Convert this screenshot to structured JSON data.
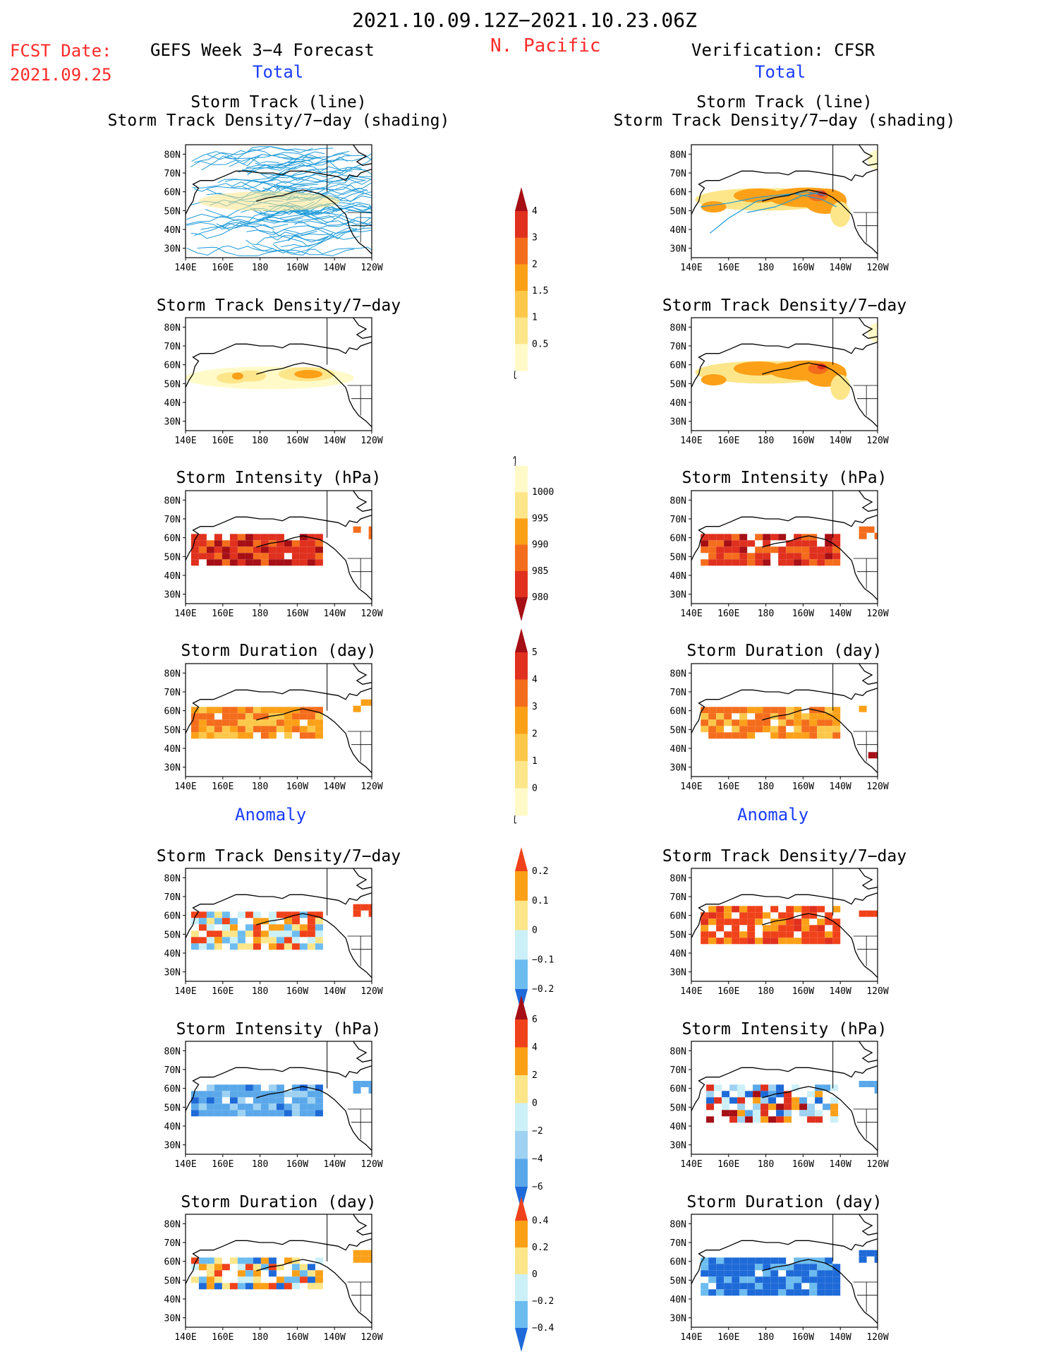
{
  "header": {
    "period": "2021.10.09.12Z−2021.10.23.06Z",
    "region": "N. Pacific",
    "fcst_date_label": "FCST Date:",
    "fcst_date": "2021.09.25",
    "left_title": "GEFS Week 3−4 Forecast",
    "right_title": "Verification: CFSR",
    "left_total": "Total",
    "right_total": "Total",
    "left_anomaly": "Anomaly",
    "right_anomaly": "Anomaly"
  },
  "colors": {
    "red_text": "#ff2a2a",
    "blue_text": "#1a3cff",
    "track_line": "#1e9bd8"
  },
  "axis_ticks": {
    "lat": [
      "80N",
      "70N",
      "60N",
      "50N",
      "40N",
      "30N"
    ],
    "lon": [
      "140E",
      "160E",
      "180",
      "160W",
      "140W",
      "120W"
    ]
  },
  "panels": {
    "left": [
      {
        "title": "Storm Track (line)",
        "title2": "Storm Track Density/7−day (shading)"
      },
      {
        "title": "Storm Track Density/7−day"
      },
      {
        "title": "Storm Intensity (hPa)"
      },
      {
        "title": "Storm Duration (day)"
      },
      {
        "title": "Storm Track Density/7−day"
      },
      {
        "title": "Storm Intensity (hPa)"
      },
      {
        "title": "Storm Duration (day)"
      }
    ],
    "right": [
      {
        "title": "Storm Track (line)",
        "title2": "Storm Track Density/7−day (shading)"
      },
      {
        "title": "Storm Track Density/7−day"
      },
      {
        "title": "Storm Intensity (hPa)"
      },
      {
        "title": "Storm Duration (day)"
      },
      {
        "title": "Storm Track Density/7−day"
      },
      {
        "title": "Storm Intensity (hPa)"
      },
      {
        "title": "Storm Duration (day)"
      }
    ]
  },
  "colorbars": [
    {
      "name": "density",
      "labels": [
        "4",
        "3",
        "2",
        "1.5",
        "1",
        "0.5"
      ],
      "colors": [
        "#a50f15",
        "#e0301e",
        "#f46d1c",
        "#fca018",
        "#fdc84a",
        "#fde68a",
        "#fffac8"
      ]
    },
    {
      "name": "intensity",
      "labels": [
        "1000",
        "995",
        "990",
        "985",
        "980"
      ],
      "colors": [
        "#fffac8",
        "#fde68a",
        "#fca018",
        "#f46d1c",
        "#e0301e",
        "#a50f15"
      ]
    },
    {
      "name": "duration",
      "labels": [
        "5",
        "4",
        "3",
        "2",
        "1",
        "0"
      ],
      "colors": [
        "#a50f15",
        "#e0301e",
        "#f46d1c",
        "#fca018",
        "#fdc84a",
        "#fde68a",
        "#fffac8"
      ]
    },
    {
      "name": "density-anomaly",
      "labels": [
        "0.2",
        "0.1",
        "0",
        "−0.1",
        "−0.2"
      ],
      "colors": [
        "#f0421a",
        "#fca018",
        "#fde68a",
        "#ccf0f8",
        "#6cbcf0",
        "#1e6ad8"
      ]
    },
    {
      "name": "intensity-anomaly",
      "labels": [
        "6",
        "4",
        "2",
        "0",
        "−2",
        "−4",
        "−6"
      ],
      "colors": [
        "#a50f15",
        "#f0421a",
        "#fca018",
        "#fde68a",
        "#ccf0f8",
        "#9fd2f2",
        "#5aa8ea",
        "#1e6ad8"
      ]
    },
    {
      "name": "duration-anomaly",
      "labels": [
        "0.4",
        "0.2",
        "0",
        "−0.2",
        "−0.4"
      ],
      "colors": [
        "#f0421a",
        "#fca018",
        "#fde68a",
        "#ccf0f8",
        "#6cbcf0",
        "#1e6ad8"
      ]
    }
  ]
}
